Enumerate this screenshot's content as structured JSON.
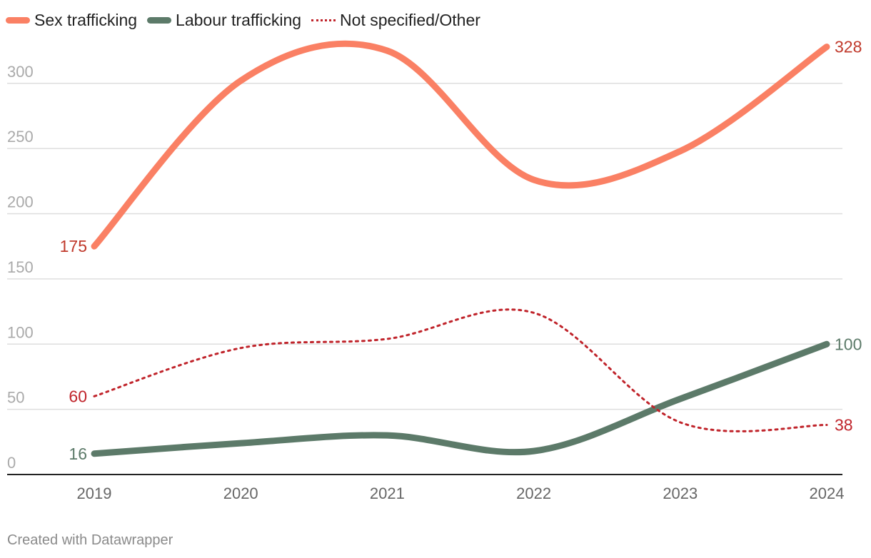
{
  "chart_data": {
    "type": "line",
    "title": "",
    "xlabel": "",
    "ylabel": "",
    "categories": [
      "2019",
      "2020",
      "2021",
      "2022",
      "2023",
      "2024"
    ],
    "ylim": [
      0,
      330
    ],
    "yticks": [
      0,
      50,
      100,
      150,
      200,
      250,
      300
    ],
    "grid": true,
    "legend_position": "top-left",
    "series": [
      {
        "name": "Sex trafficking",
        "color": "#FA8064",
        "label_color": "#c0392b",
        "style": "solid",
        "values": [
          175,
          302,
          325,
          226,
          248,
          328
        ],
        "start_label": "175",
        "end_label": "328"
      },
      {
        "name": "Labour trafficking",
        "color": "#5C7A69",
        "label_color": "#5C7A69",
        "style": "solid",
        "values": [
          16,
          24,
          30,
          18,
          58,
          100
        ],
        "start_label": "16",
        "end_label": "100"
      },
      {
        "name": "Not specified/Other",
        "color": "#C0242B",
        "label_color": "#C0242B",
        "style": "dotted",
        "values": [
          60,
          97,
          104,
          124,
          40,
          38
        ],
        "start_label": "60",
        "end_label": "38"
      }
    ]
  },
  "footer": {
    "credit": "Created with Datawrapper"
  }
}
